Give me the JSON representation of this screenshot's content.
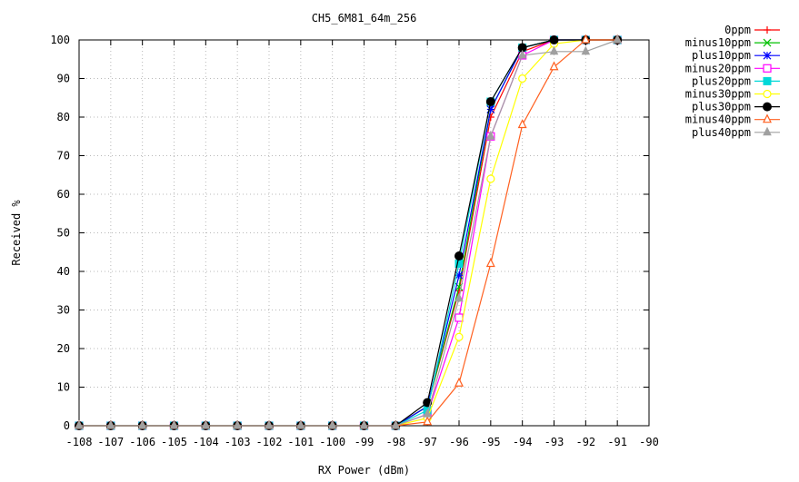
{
  "chart_data": {
    "type": "line",
    "title": "CH5_6M81_64m_256",
    "xlabel": "RX Power (dBm)",
    "ylabel": "Received %",
    "xlim": [
      -108,
      -90
    ],
    "ylim": [
      0,
      100
    ],
    "x_ticks": [
      "-108",
      "-107",
      "-106",
      "-105",
      "-104",
      "-103",
      "-102",
      "-101",
      "-100",
      "-99",
      "-98",
      "-97",
      "-96",
      "-95",
      "-94",
      "-93",
      "-92",
      "-91",
      "-90"
    ],
    "y_ticks": [
      "0",
      "10",
      "20",
      "30",
      "40",
      "50",
      "60",
      "70",
      "80",
      "90",
      "100"
    ],
    "grid": true,
    "legend_position": "top-right",
    "x": [
      -108,
      -107,
      -106,
      -105,
      -104,
      -103,
      -102,
      -101,
      -100,
      -99,
      -98,
      -97,
      -96,
      -95,
      -94,
      -93,
      -92,
      -91
    ],
    "series": [
      {
        "name": "0ppm",
        "color": "#ff0000",
        "marker": "plus",
        "values": [
          0,
          0,
          0,
          0,
          0,
          0,
          0,
          0,
          0,
          0,
          0,
          5,
          35,
          80,
          97,
          100,
          100,
          100
        ]
      },
      {
        "name": "minus10ppm",
        "color": "#00c000",
        "marker": "cross",
        "values": [
          0,
          0,
          0,
          0,
          0,
          0,
          0,
          0,
          0,
          0,
          0,
          5,
          36,
          82,
          98,
          100,
          100,
          100
        ]
      },
      {
        "name": "plus10ppm",
        "color": "#0000ff",
        "marker": "star",
        "values": [
          0,
          0,
          0,
          0,
          0,
          0,
          0,
          0,
          0,
          0,
          0,
          5,
          39,
          82,
          98,
          100,
          100,
          100
        ]
      },
      {
        "name": "minus20ppm",
        "color": "#ff00ff",
        "marker": "square-open",
        "values": [
          0,
          0,
          0,
          0,
          0,
          0,
          0,
          0,
          0,
          0,
          0,
          3,
          28,
          75,
          96,
          100,
          100,
          100
        ]
      },
      {
        "name": "plus20ppm",
        "color": "#00d8d8",
        "marker": "square-filled",
        "values": [
          0,
          0,
          0,
          0,
          0,
          0,
          0,
          0,
          0,
          0,
          0,
          4,
          42,
          84,
          98,
          100,
          100,
          100
        ]
      },
      {
        "name": "minus30ppm",
        "color": "#ffff00",
        "marker": "circle-open",
        "values": [
          0,
          0,
          0,
          0,
          0,
          0,
          0,
          0,
          0,
          0,
          0,
          2,
          23,
          64,
          90,
          99,
          100,
          100
        ]
      },
      {
        "name": "plus30ppm",
        "color": "#000000",
        "marker": "circle-filled",
        "values": [
          0,
          0,
          0,
          0,
          0,
          0,
          0,
          0,
          0,
          0,
          0,
          6,
          44,
          84,
          98,
          100,
          100,
          100
        ]
      },
      {
        "name": "minus40ppm",
        "color": "#ff6020",
        "marker": "triangle-open",
        "values": [
          0,
          0,
          0,
          0,
          0,
          0,
          0,
          0,
          0,
          0,
          0,
          1,
          11,
          42,
          78,
          93,
          100,
          100
        ]
      },
      {
        "name": "plus40ppm",
        "color": "#a0a0a0",
        "marker": "triangle-filled",
        "values": [
          0,
          0,
          0,
          0,
          0,
          0,
          0,
          0,
          0,
          0,
          0,
          3,
          33,
          75,
          96,
          97,
          97,
          100
        ]
      }
    ]
  }
}
